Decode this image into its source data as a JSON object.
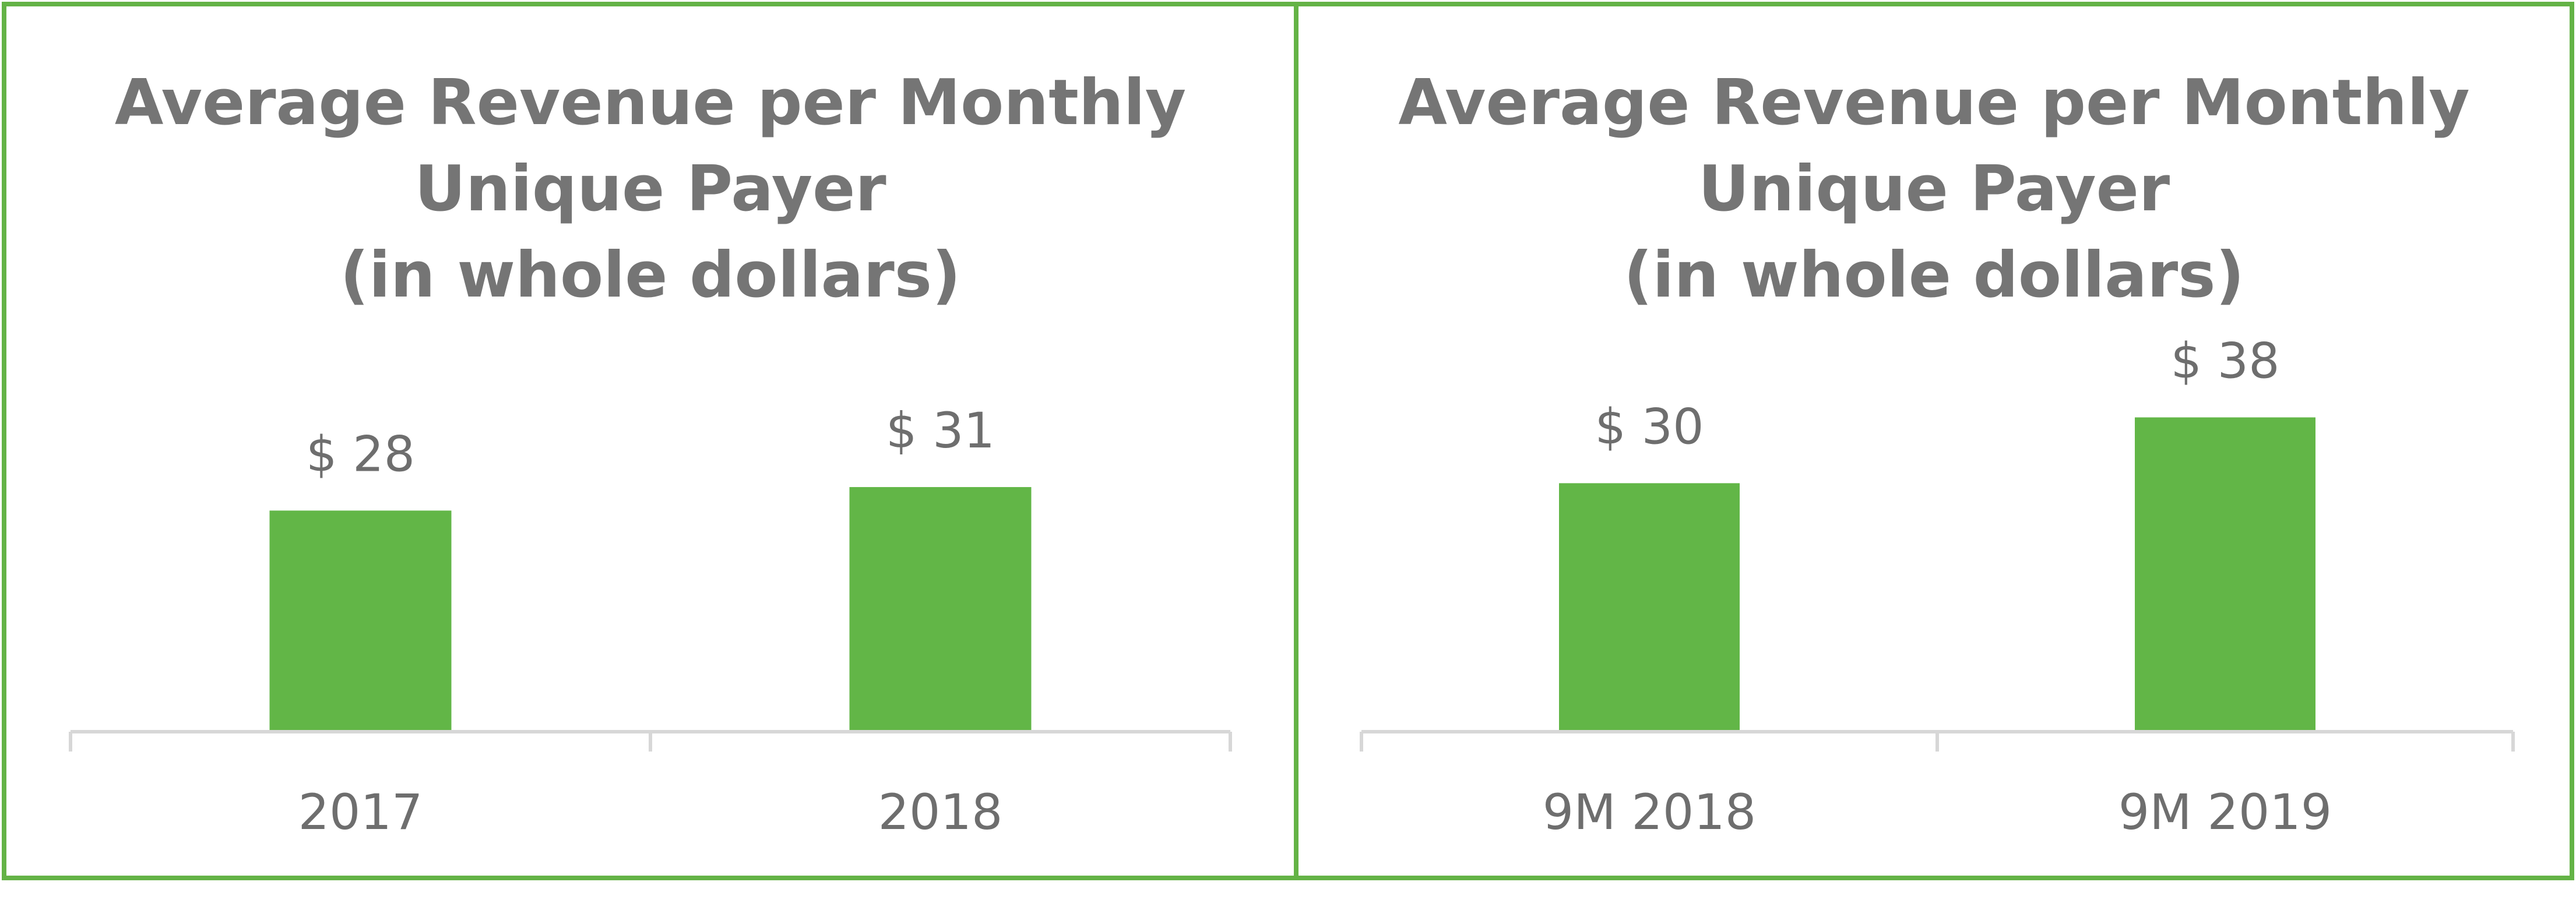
{
  "colors": {
    "bar": "#62b647",
    "border": "#64b346",
    "text": "#6e6e6e",
    "title": "#757575",
    "axis": "#d7d7d7"
  },
  "chart_data": [
    {
      "type": "bar",
      "title": [
        "Average Revenue per Monthly",
        "Unique Payer",
        "(in whole dollars)"
      ],
      "categories": [
        "2017",
        "2018"
      ],
      "values": [
        28,
        31
      ],
      "value_labels": [
        "$ 28",
        "$ 31"
      ],
      "xlabel": "",
      "ylabel": "",
      "ylim": [
        0,
        40
      ],
      "grid": false,
      "legend": "none"
    },
    {
      "type": "bar",
      "title": [
        "Average Revenue per Monthly",
        "Unique Payer",
        "(in whole dollars)"
      ],
      "categories": [
        "9M 2018",
        "9M 2019"
      ],
      "values": [
        30,
        38
      ],
      "value_labels": [
        "$ 30",
        "$ 38"
      ],
      "xlabel": "",
      "ylabel": "",
      "ylim": [
        0,
        40
      ],
      "grid": false,
      "legend": "none"
    }
  ]
}
